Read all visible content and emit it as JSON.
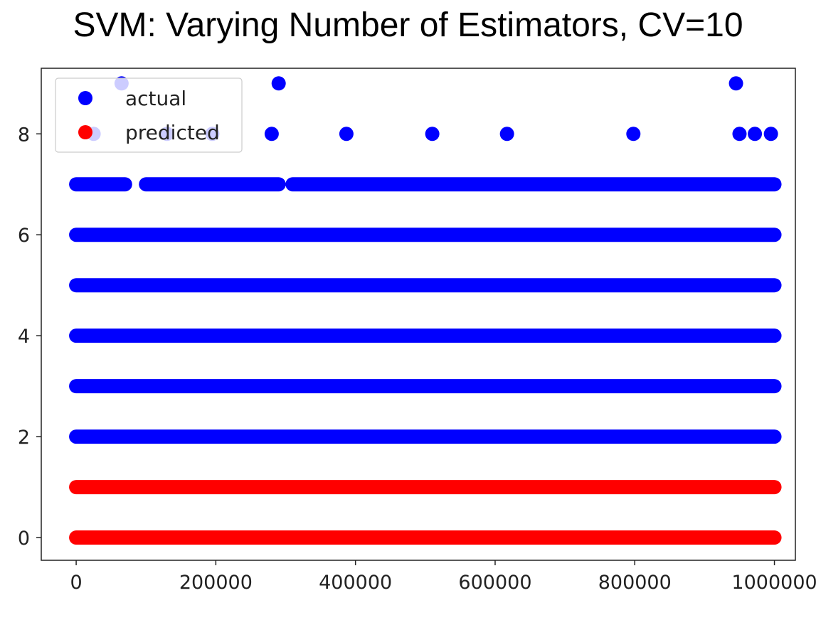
{
  "chart_data": {
    "type": "scatter",
    "title": "SVM: Varying Number of Estimators, CV=10",
    "xlabel": "",
    "ylabel": "",
    "xlim": [
      -50000,
      1030000
    ],
    "ylim": [
      -0.45,
      9.3
    ],
    "x_ticks": [
      0,
      200000,
      400000,
      600000,
      800000,
      1000000
    ],
    "x_tick_labels": [
      "0",
      "200000",
      "400000",
      "600000",
      "800000",
      "1000000"
    ],
    "y_ticks": [
      0,
      2,
      4,
      6,
      8
    ],
    "y_tick_labels": [
      "0",
      "2",
      "4",
      "6",
      "8"
    ],
    "grid": false,
    "legend_position": "top-left",
    "series": [
      {
        "name": "actual",
        "color": "#0000ff",
        "bands": [
          {
            "y": 2,
            "x_start": 0,
            "x_end": 1000000
          },
          {
            "y": 3,
            "x_start": 0,
            "x_end": 1000000
          },
          {
            "y": 4,
            "x_start": 0,
            "x_end": 1000000
          },
          {
            "y": 5,
            "x_start": 0,
            "x_end": 1000000
          },
          {
            "y": 6,
            "x_start": 0,
            "x_end": 1000000
          }
        ],
        "segments": [
          {
            "y": 7,
            "x_start": 0,
            "x_end": 70000
          },
          {
            "y": 7,
            "x_start": 100000,
            "x_end": 290000
          },
          {
            "y": 7,
            "x_start": 310000,
            "x_end": 1000000
          }
        ],
        "points": [
          {
            "x": 290000,
            "y": 9
          },
          {
            "x": 945000,
            "y": 9
          },
          {
            "x": 65000,
            "y": 9
          },
          {
            "x": 25000,
            "y": 8
          },
          {
            "x": 130000,
            "y": 8
          },
          {
            "x": 195000,
            "y": 8
          },
          {
            "x": 280000,
            "y": 8
          },
          {
            "x": 387000,
            "y": 8
          },
          {
            "x": 510000,
            "y": 8
          },
          {
            "x": 617000,
            "y": 8
          },
          {
            "x": 798000,
            "y": 8
          },
          {
            "x": 950000,
            "y": 8
          },
          {
            "x": 972000,
            "y": 8
          },
          {
            "x": 995000,
            "y": 8
          }
        ]
      },
      {
        "name": "predicted",
        "color": "#ff0000",
        "bands": [
          {
            "y": 0,
            "x_start": 0,
            "x_end": 1000000
          },
          {
            "y": 1,
            "x_start": 0,
            "x_end": 1000000
          }
        ],
        "segments": [],
        "points": []
      }
    ],
    "legend": [
      {
        "label": "actual",
        "color": "#0000ff"
      },
      {
        "label": "predicted",
        "color": "#ff0000"
      }
    ]
  }
}
